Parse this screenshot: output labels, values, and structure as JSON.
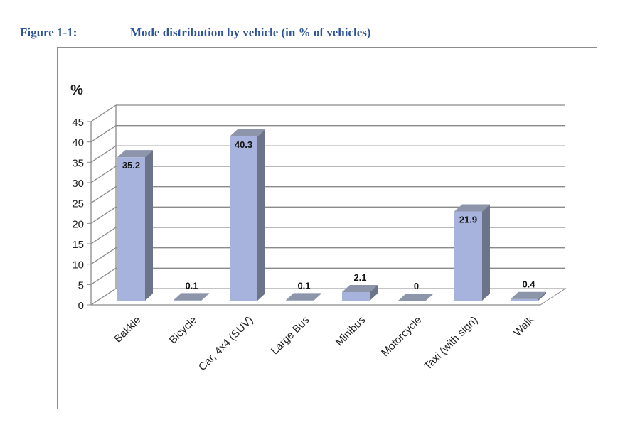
{
  "caption": {
    "number": "Figure 1-1:",
    "title": "Mode distribution by vehicle (in % of vehicles)"
  },
  "colors": {
    "caption": "#2f5597",
    "bar_front": "#a7b3dc",
    "bar_side": "#6b7488",
    "bar_top": "#8d95aa",
    "grid": "#8a8a8a"
  },
  "chart_data": {
    "type": "bar",
    "title": "Mode distribution by vehicle (in % of vehicles)",
    "ylabel": "%",
    "xlabel": "",
    "ylim": [
      0,
      45
    ],
    "yticks": [
      0,
      5,
      10,
      15,
      20,
      25,
      30,
      35,
      40,
      45
    ],
    "grid": true,
    "legend": "none",
    "style": "3d",
    "categories": [
      "Bakkie",
      "Bicycle",
      "Car, 4x4 (SUV)",
      "Large Bus",
      "Minibus",
      "Motorcycle",
      "Taxi (with sign)",
      "Walk"
    ],
    "values": [
      35.2,
      0.1,
      40.3,
      0.1,
      2.1,
      0,
      21.9,
      0.4
    ],
    "data_labels": [
      "35.2",
      "0.1",
      "40.3",
      "0.1",
      "2.1",
      "0",
      "21.9",
      "0.4"
    ]
  }
}
